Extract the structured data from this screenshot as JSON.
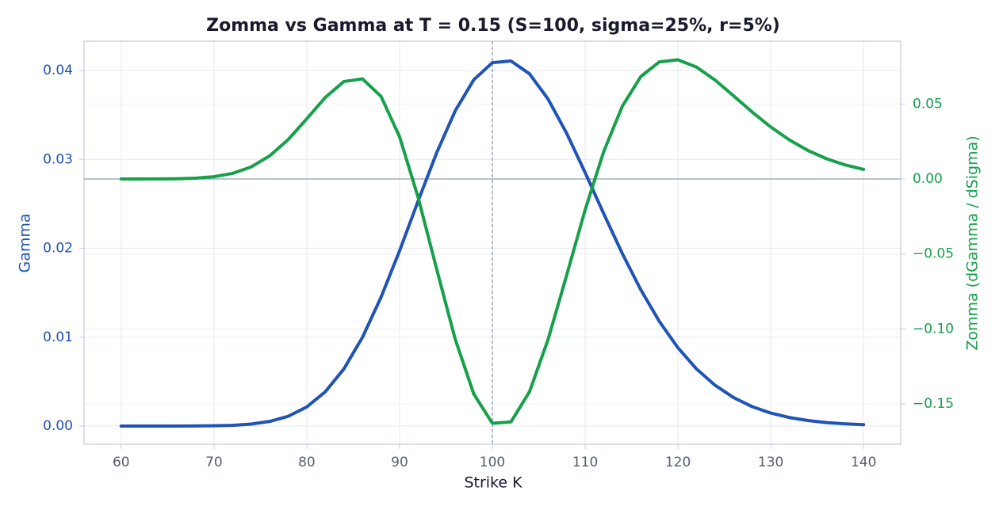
{
  "chart_data": {
    "type": "line",
    "title": "Zomma vs Gamma at T = 0.15  (S=100, sigma=25%, r=5%)",
    "xlabel": "Strike K",
    "ylabel": "Gamma",
    "y2label": "Zomma  (dGamma / dSigma)",
    "x": [
      60,
      62,
      64,
      66,
      68,
      70,
      72,
      74,
      76,
      78,
      80,
      82,
      84,
      86,
      88,
      90,
      92,
      94,
      96,
      98,
      100,
      102,
      104,
      106,
      108,
      110,
      112,
      114,
      116,
      118,
      120,
      122,
      124,
      126,
      128,
      130,
      132,
      134,
      136,
      138,
      140
    ],
    "series": [
      {
        "color": "#1f53b5",
        "axis": "y",
        "values": [
          0,
          0,
          0,
          0,
          1e-05,
          3e-05,
          8e-05,
          0.00022,
          0.00052,
          0.0011,
          0.00215,
          0.00386,
          0.00643,
          0.00998,
          0.01449,
          0.01971,
          0.02532,
          0.03075,
          0.03547,
          0.03896,
          0.04088,
          0.04107,
          0.03963,
          0.03679,
          0.03295,
          0.02851,
          0.02389,
          0.01941,
          0.01532,
          0.01176,
          0.0088,
          0.00642,
          0.00459,
          0.0032,
          0.00218,
          0.00146,
          0.00096,
          0.00062,
          0.00039,
          0.00025,
          0.00015
        ]
      },
      {
        "color": "#16a04a",
        "axis": "y2",
        "values": [
          0,
          1e-05,
          5e-05,
          0.00017,
          0.00055,
          0.00153,
          0.00373,
          0.00802,
          0.01541,
          0.02629,
          0.04016,
          0.05441,
          0.06501,
          0.06679,
          0.05511,
          0.0282,
          -0.01227,
          -0.06012,
          -0.1069,
          -0.1434,
          -0.1629,
          -0.162,
          -0.1419,
          -0.1071,
          -0.06428,
          -0.02052,
          0.01829,
          0.04847,
          0.06833,
          0.07811,
          0.07949,
          0.0746,
          0.06595,
          0.05541,
          0.04463,
          0.03467,
          0.02609,
          0.01903,
          0.01354,
          0.00939,
          0.00637
        ]
      }
    ],
    "xlim": [
      56,
      144
    ],
    "xticks": [
      60,
      70,
      80,
      90,
      100,
      110,
      120,
      130,
      140
    ],
    "ylim": [
      -0.00205,
      0.0433
    ],
    "yticks": [
      {
        "value": 0,
        "label": "0.00"
      },
      0.01,
      0.02,
      0.03,
      0.04
    ],
    "y2lim": [
      -0.1769,
      0.0919
    ],
    "y2ticks": [
      {
        "value": -0.15,
        "label": "−0.15"
      },
      {
        "value": -0.1,
        "label": "−0.10"
      },
      {
        "value": -0.05,
        "label": "−0.05"
      },
      {
        "value": 0,
        "label": "0.00"
      },
      0.05
    ],
    "grid": true,
    "reference_lines": [
      {
        "axis": "x",
        "value": 100,
        "style": "dashed"
      },
      {
        "axis": "y2",
        "value": 0,
        "style": "solid"
      }
    ]
  }
}
